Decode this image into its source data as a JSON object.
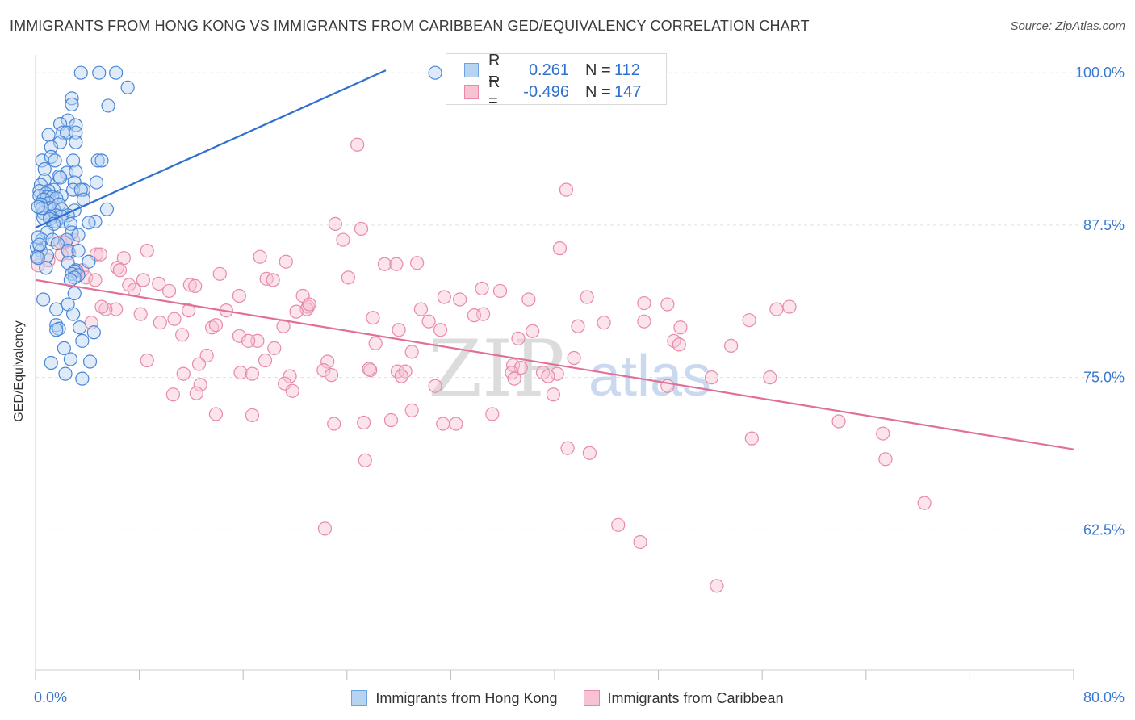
{
  "title": "IMMIGRANTS FROM HONG KONG VS IMMIGRANTS FROM CARIBBEAN GED/EQUIVALENCY CORRELATION CHART",
  "source": "Source: ZipAtlas.com",
  "watermark": {
    "zip": "ZIP",
    "atlas": "atlas"
  },
  "legend_top": {
    "rows": [
      {
        "r_label": "R =",
        "r_value": "0.261",
        "n_label": "N =",
        "n_value": "112",
        "color": "#2f6fcf"
      },
      {
        "r_label": "R =",
        "r_value": "-0.496",
        "n_label": "N =",
        "n_value": "147",
        "color": "#e0709a"
      }
    ]
  },
  "legend_bottom": {
    "items": [
      {
        "label": "Immigrants from Hong Kong"
      },
      {
        "label": "Immigrants from Caribbean"
      }
    ]
  },
  "chart_data": {
    "type": "scatter",
    "title": "IMMIGRANTS FROM HONG KONG VS IMMIGRANTS FROM CARIBBEAN GED/EQUIVALENCY CORRELATION CHART",
    "xlabel": "",
    "ylabel": "GED/Equivalency",
    "xlim": [
      0,
      80
    ],
    "ylim": [
      51,
      102
    ],
    "x_tick_labels": [
      "0.0%",
      "80.0%"
    ],
    "y_ticks": [
      62.5,
      75.0,
      87.5,
      100.0
    ],
    "y_tick_labels": [
      "62.5%",
      "75.0%",
      "87.5%",
      "100.0%"
    ],
    "grid": "horizontal dashed",
    "legend_position": "top-center",
    "colors": {
      "blue_fill": "#b7d3f2",
      "blue_stroke": "#4a86d8",
      "blue_line": "#2f6fcf",
      "pink_fill": "#f7c3d3",
      "pink_stroke": "#e88aa8",
      "pink_line": "#e0709a"
    },
    "series": [
      {
        "name": "Immigrants from Hong Kong",
        "color": "#4a86d8",
        "trend": {
          "x": [
            0,
            27
          ],
          "y": [
            87.3,
            100.2
          ]
        },
        "points": [
          [
            3.5,
            100
          ],
          [
            4.9,
            100
          ],
          [
            6.2,
            100
          ],
          [
            30.8,
            100
          ],
          [
            7.1,
            98.8
          ],
          [
            2.8,
            97.9
          ],
          [
            2.8,
            97.4
          ],
          [
            5.6,
            97.3
          ],
          [
            2.5,
            96.1
          ],
          [
            1.9,
            95.8
          ],
          [
            3.1,
            95.7
          ],
          [
            2.1,
            95.1
          ],
          [
            2.4,
            95.1
          ],
          [
            1.0,
            94.9
          ],
          [
            3.1,
            95.1
          ],
          [
            1.9,
            94.3
          ],
          [
            3.1,
            94.3
          ],
          [
            1.2,
            93.9
          ],
          [
            2.9,
            92.8
          ],
          [
            0.5,
            92.8
          ],
          [
            1.2,
            93.1
          ],
          [
            1.5,
            92.8
          ],
          [
            4.8,
            92.8
          ],
          [
            5.1,
            92.8
          ],
          [
            0.7,
            92.1
          ],
          [
            2.4,
            91.8
          ],
          [
            1.8,
            91.5
          ],
          [
            3.1,
            91.9
          ],
          [
            1.9,
            91.4
          ],
          [
            0.7,
            91.2
          ],
          [
            3.0,
            91.0
          ],
          [
            4.7,
            91.0
          ],
          [
            0.4,
            90.8
          ],
          [
            1.4,
            90.4
          ],
          [
            2.9,
            90.4
          ],
          [
            1.0,
            90.3
          ],
          [
            3.7,
            90.4
          ],
          [
            3.5,
            90.4
          ],
          [
            0.3,
            90.3
          ],
          [
            0.8,
            90.1
          ],
          [
            0.3,
            89.9
          ],
          [
            2.0,
            89.9
          ],
          [
            0.9,
            89.8
          ],
          [
            1.3,
            89.8
          ],
          [
            1.6,
            89.7
          ],
          [
            0.6,
            89.6
          ],
          [
            3.7,
            89.6
          ],
          [
            1.0,
            89.3
          ],
          [
            0.4,
            89.2
          ],
          [
            1.8,
            89.2
          ],
          [
            1.1,
            88.9
          ],
          [
            1.4,
            88.8
          ],
          [
            2.0,
            88.8
          ],
          [
            5.5,
            88.8
          ],
          [
            3.0,
            88.7
          ],
          [
            0.6,
            88.5
          ],
          [
            1.6,
            88.3
          ],
          [
            2.5,
            88.3
          ],
          [
            1.1,
            88.2
          ],
          [
            2.0,
            88.2
          ],
          [
            0.6,
            88.1
          ],
          [
            1.1,
            88.0
          ],
          [
            1.6,
            87.8
          ],
          [
            2.1,
            87.8
          ],
          [
            4.6,
            87.8
          ],
          [
            4.1,
            87.7
          ],
          [
            1.4,
            87.6
          ],
          [
            2.7,
            87.6
          ],
          [
            0.9,
            86.9
          ],
          [
            2.8,
            86.9
          ],
          [
            3.3,
            86.7
          ],
          [
            0.5,
            86.3
          ],
          [
            1.3,
            86.3
          ],
          [
            2.4,
            86.3
          ],
          [
            1.7,
            86.0
          ],
          [
            0.1,
            85.7
          ],
          [
            0.4,
            85.4
          ],
          [
            2.5,
            85.4
          ],
          [
            3.3,
            85.4
          ],
          [
            0.9,
            85.0
          ],
          [
            0.1,
            84.9
          ],
          [
            4.1,
            84.5
          ],
          [
            2.5,
            84.4
          ],
          [
            0.8,
            84.0
          ],
          [
            3.1,
            83.8
          ],
          [
            3.0,
            83.7
          ],
          [
            2.8,
            83.5
          ],
          [
            3.3,
            83.4
          ],
          [
            3.0,
            83.2
          ],
          [
            2.7,
            83.0
          ],
          [
            3.0,
            81.9
          ],
          [
            0.6,
            81.4
          ],
          [
            2.5,
            81.0
          ],
          [
            1.6,
            80.6
          ],
          [
            2.9,
            80.2
          ],
          [
            1.6,
            79.3
          ],
          [
            1.8,
            79.0
          ],
          [
            3.4,
            79.1
          ],
          [
            1.6,
            78.9
          ],
          [
            4.5,
            78.7
          ],
          [
            3.6,
            78.0
          ],
          [
            2.2,
            77.4
          ],
          [
            2.7,
            76.5
          ],
          [
            1.2,
            76.2
          ],
          [
            4.2,
            76.3
          ],
          [
            2.3,
            75.3
          ],
          [
            3.6,
            74.9
          ],
          [
            0.2,
            86.5
          ],
          [
            0.2,
            84.8
          ],
          [
            0.5,
            88.9
          ],
          [
            0.2,
            89.0
          ],
          [
            0.3,
            85.9
          ]
        ]
      },
      {
        "name": "Immigrants from Caribbean",
        "color": "#e88aa8",
        "trend": {
          "x": [
            0,
            80
          ],
          "y": [
            83.0,
            69.1
          ]
        },
        "points": [
          [
            24.8,
            94.1
          ],
          [
            40.9,
            90.4
          ],
          [
            23.1,
            87.6
          ],
          [
            25.1,
            87.2
          ],
          [
            23.7,
            86.3
          ],
          [
            2.9,
            86.3
          ],
          [
            1.9,
            86.1
          ],
          [
            2.3,
            86.1
          ],
          [
            40.4,
            85.6
          ],
          [
            8.6,
            85.4
          ],
          [
            2.6,
            85.2
          ],
          [
            4.7,
            85.1
          ],
          [
            5.0,
            85.1
          ],
          [
            17.3,
            84.9
          ],
          [
            6.8,
            84.8
          ],
          [
            19.3,
            84.5
          ],
          [
            26.9,
            84.3
          ],
          [
            27.8,
            84.3
          ],
          [
            0.2,
            84.2
          ],
          [
            6.3,
            84.0
          ],
          [
            6.5,
            83.8
          ],
          [
            3.6,
            83.8
          ],
          [
            14.2,
            83.5
          ],
          [
            3.2,
            83.7
          ],
          [
            24.1,
            83.2
          ],
          [
            17.8,
            83.1
          ],
          [
            8.3,
            83.0
          ],
          [
            18.3,
            83.0
          ],
          [
            3.9,
            83.2
          ],
          [
            4.6,
            83.0
          ],
          [
            9.5,
            82.7
          ],
          [
            11.9,
            82.6
          ],
          [
            7.2,
            82.6
          ],
          [
            7.6,
            82.2
          ],
          [
            34.4,
            82.3
          ],
          [
            10.3,
            82.1
          ],
          [
            35.8,
            82.1
          ],
          [
            15.7,
            81.7
          ],
          [
            31.5,
            81.6
          ],
          [
            20.6,
            81.7
          ],
          [
            42.5,
            81.6
          ],
          [
            32.7,
            81.4
          ],
          [
            46.9,
            81.1
          ],
          [
            48.7,
            81.0
          ],
          [
            58.1,
            80.8
          ],
          [
            21.0,
            80.8
          ],
          [
            6.2,
            80.6
          ],
          [
            20.9,
            80.6
          ],
          [
            29.7,
            80.6
          ],
          [
            14.7,
            80.5
          ],
          [
            11.8,
            80.5
          ],
          [
            20.1,
            80.4
          ],
          [
            34.5,
            80.2
          ],
          [
            26.0,
            79.9
          ],
          [
            33.8,
            80.1
          ],
          [
            8.1,
            80.2
          ],
          [
            10.7,
            79.8
          ],
          [
            9.6,
            79.5
          ],
          [
            30.3,
            79.6
          ],
          [
            43.8,
            79.5
          ],
          [
            46.9,
            79.6
          ],
          [
            55.0,
            79.7
          ],
          [
            13.6,
            79.1
          ],
          [
            31.2,
            78.9
          ],
          [
            49.7,
            79.1
          ],
          [
            19.1,
            79.2
          ],
          [
            28.0,
            78.9
          ],
          [
            13.9,
            79.3
          ],
          [
            11.3,
            78.5
          ],
          [
            15.7,
            78.4
          ],
          [
            38.3,
            78.8
          ],
          [
            37.2,
            78.2
          ],
          [
            49.2,
            78.0
          ],
          [
            17.1,
            78.0
          ],
          [
            16.4,
            78.0
          ],
          [
            26.2,
            77.8
          ],
          [
            49.6,
            77.7
          ],
          [
            53.6,
            77.6
          ],
          [
            18.4,
            77.4
          ],
          [
            29.0,
            77.1
          ],
          [
            13.2,
            76.8
          ],
          [
            41.5,
            76.6
          ],
          [
            8.6,
            76.4
          ],
          [
            17.7,
            76.4
          ],
          [
            12.6,
            76.1
          ],
          [
            22.5,
            76.3
          ],
          [
            36.8,
            76.0
          ],
          [
            37.4,
            75.8
          ],
          [
            25.8,
            75.6
          ],
          [
            25.7,
            75.7
          ],
          [
            27.9,
            75.5
          ],
          [
            22.2,
            75.6
          ],
          [
            28.5,
            75.5
          ],
          [
            36.7,
            75.4
          ],
          [
            15.8,
            75.4
          ],
          [
            16.7,
            75.3
          ],
          [
            39.1,
            75.4
          ],
          [
            40.2,
            75.3
          ],
          [
            22.8,
            75.2
          ],
          [
            11.4,
            75.3
          ],
          [
            19.6,
            75.1
          ],
          [
            28.2,
            75.1
          ],
          [
            39.5,
            75.1
          ],
          [
            52.1,
            75.0
          ],
          [
            56.6,
            75.0
          ],
          [
            36.9,
            74.9
          ],
          [
            12.7,
            74.4
          ],
          [
            19.2,
            74.5
          ],
          [
            30.8,
            74.3
          ],
          [
            48.7,
            74.3
          ],
          [
            19.8,
            73.9
          ],
          [
            12.4,
            73.7
          ],
          [
            10.6,
            73.6
          ],
          [
            39.9,
            73.6
          ],
          [
            29.0,
            72.3
          ],
          [
            13.9,
            72.0
          ],
          [
            16.7,
            71.9
          ],
          [
            35.2,
            72.0
          ],
          [
            27.4,
            71.5
          ],
          [
            25.3,
            71.3
          ],
          [
            23.0,
            71.2
          ],
          [
            31.4,
            71.2
          ],
          [
            32.4,
            71.2
          ],
          [
            61.9,
            71.4
          ],
          [
            65.3,
            70.4
          ],
          [
            55.2,
            70.0
          ],
          [
            41.0,
            69.2
          ],
          [
            42.7,
            68.8
          ],
          [
            25.4,
            68.2
          ],
          [
            65.5,
            68.3
          ],
          [
            68.5,
            64.7
          ],
          [
            22.3,
            62.6
          ],
          [
            44.9,
            62.9
          ],
          [
            46.6,
            61.5
          ],
          [
            52.5,
            57.9
          ],
          [
            4.3,
            79.5
          ],
          [
            5.4,
            80.6
          ],
          [
            21.1,
            81.0
          ],
          [
            57.1,
            80.6
          ],
          [
            29.4,
            84.4
          ],
          [
            38.0,
            81.4
          ],
          [
            41.8,
            79.2
          ],
          [
            12.3,
            82.5
          ],
          [
            2.0,
            85.1
          ],
          [
            1.0,
            84.6
          ],
          [
            5.1,
            80.8
          ]
        ]
      }
    ]
  }
}
